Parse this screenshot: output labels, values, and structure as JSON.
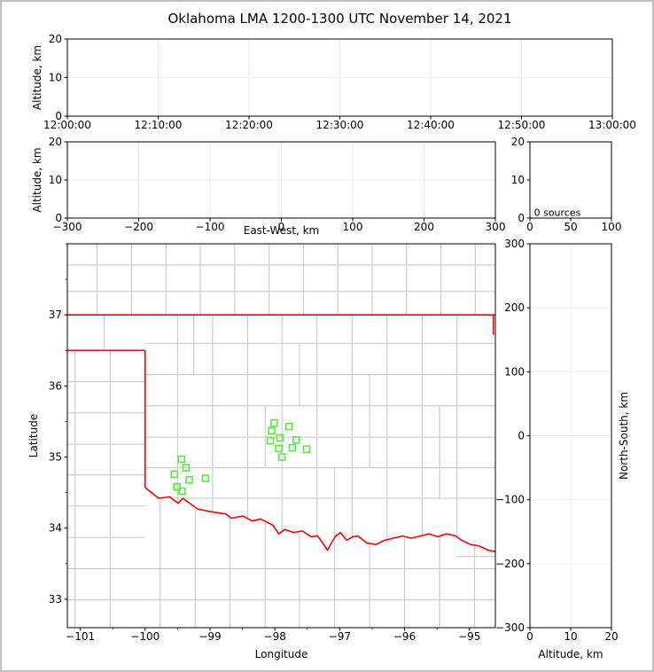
{
  "title": "Oklahoma LMA 1200-1300 UTC November 14, 2021",
  "colors": {
    "frame": "#000000",
    "grid": "#ececec",
    "county_line": "#c9c9c9",
    "state_border": "#ff0000",
    "station_marker": "#55ee33",
    "text": "#000000",
    "figure_border": "#c0c0c0",
    "background": "#ffffff"
  },
  "chart_data": {
    "type": "scatter",
    "figure_title": "Oklahoma LMA 1200-1300 UTC November 14, 2021",
    "source_count_note": "0 sources",
    "panels": [
      {
        "id": "time_height",
        "description": "altitude vs time panel, no data points",
        "x": {
          "min": 0,
          "max": 3600,
          "grid": true,
          "tick_values": [
            0,
            600,
            1200,
            1800,
            2400,
            3000,
            3600
          ],
          "tick_labels": [
            "12:00:00",
            "12:10:00",
            "12:20:00",
            "12:30:00",
            "12:40:00",
            "12:50:00",
            "13:00:00"
          ],
          "label": ""
        },
        "y": {
          "min": 0,
          "max": 20,
          "grid": true,
          "tick_values": [
            0,
            10,
            20
          ],
          "tick_labels": [
            "0",
            "10",
            "20"
          ],
          "label": "Altitude, km"
        },
        "points": []
      },
      {
        "id": "ew_height",
        "description": "altitude vs east-west distance panel, no data points",
        "x": {
          "min": -300,
          "max": 300,
          "grid": true,
          "tick_values": [
            -300,
            -200,
            -100,
            0,
            100,
            200,
            300
          ],
          "tick_labels": [
            "−300",
            "−200",
            "−100",
            "0",
            "100",
            "200",
            "300"
          ],
          "label": "East-West, km"
        },
        "y": {
          "min": 0,
          "max": 20,
          "grid": true,
          "tick_values": [
            0,
            10,
            20
          ],
          "tick_labels": [
            "0",
            "10",
            "20"
          ],
          "label": "Altitude, km"
        },
        "points": []
      },
      {
        "id": "alt_hist",
        "description": "altitude histogram panel, zero sources",
        "x": {
          "min": 0,
          "max": 100,
          "grid": false,
          "tick_values": [
            0,
            50,
            100
          ],
          "tick_labels": [
            "0",
            "50",
            "100"
          ],
          "label": ""
        },
        "y": {
          "min": 0,
          "max": 20,
          "grid": false,
          "tick_values": [
            0,
            10,
            20
          ],
          "tick_labels": [
            "0",
            "10",
            "20"
          ],
          "label": ""
        },
        "annotation": {
          "x": 5,
          "y": 1.5,
          "text": "0 sources"
        },
        "points": []
      },
      {
        "id": "map",
        "description": "plan-view map, latitude vs longitude, LMA station squares, state borders red, county lines gray",
        "x": {
          "min": -101.2,
          "max": -94.6,
          "grid": false,
          "minor_step": 0.5,
          "tick_values": [
            -101,
            -100,
            -99,
            -98,
            -97,
            -96,
            -95
          ],
          "tick_labels": [
            "−101",
            "−100",
            "−99",
            "−98",
            "−97",
            "−96",
            "−95"
          ],
          "label": "Longitude"
        },
        "y": {
          "min": 32.6,
          "max": 38.0,
          "grid": false,
          "minor_step": 0.5,
          "tick_values": [
            33,
            34,
            35,
            36,
            37
          ],
          "tick_labels": [
            "33",
            "34",
            "35",
            "36",
            "37"
          ],
          "label": "Latitude"
        },
        "stations": [
          [
            -98.01,
            35.48
          ],
          [
            -97.78,
            35.43
          ],
          [
            -98.05,
            35.37
          ],
          [
            -97.92,
            35.27
          ],
          [
            -98.07,
            35.23
          ],
          [
            -97.67,
            35.24
          ],
          [
            -97.73,
            35.13
          ],
          [
            -97.94,
            35.12
          ],
          [
            -97.51,
            35.11
          ],
          [
            -97.89,
            35.0
          ],
          [
            -99.44,
            34.97
          ],
          [
            -99.37,
            34.85
          ],
          [
            -99.55,
            34.76
          ],
          [
            -99.32,
            34.68
          ],
          [
            -99.07,
            34.7
          ],
          [
            -99.51,
            34.58
          ],
          [
            -99.43,
            34.52
          ]
        ],
        "state_borders": [
          [
            [
              -101.2,
              37.0
            ],
            [
              -94.6,
              37.0
            ]
          ],
          [
            [
              -101.2,
              36.5
            ],
            [
              -100.0,
              36.5
            ]
          ],
          [
            [
              -100.0,
              36.5
            ],
            [
              -100.0,
              34.57
            ]
          ],
          [
            [
              -94.63,
              37.0
            ],
            [
              -94.63,
              36.72
            ]
          ],
          [
            [
              -100.0,
              34.57
            ],
            [
              -99.79,
              34.42
            ],
            [
              -99.62,
              34.44
            ],
            [
              -99.49,
              34.35
            ],
            [
              -99.42,
              34.42
            ],
            [
              -99.19,
              34.27
            ],
            [
              -98.98,
              34.23
            ],
            [
              -98.76,
              34.2
            ],
            [
              -98.67,
              34.14
            ],
            [
              -98.49,
              34.17
            ],
            [
              -98.35,
              34.1
            ],
            [
              -98.22,
              34.13
            ],
            [
              -98.03,
              34.04
            ],
            [
              -97.94,
              33.92
            ],
            [
              -97.85,
              33.98
            ],
            [
              -97.71,
              33.94
            ],
            [
              -97.58,
              33.96
            ],
            [
              -97.44,
              33.88
            ],
            [
              -97.34,
              33.89
            ],
            [
              -97.26,
              33.79
            ],
            [
              -97.19,
              33.69
            ],
            [
              -97.13,
              33.79
            ],
            [
              -97.07,
              33.88
            ],
            [
              -96.99,
              33.94
            ],
            [
              -96.89,
              33.83
            ],
            [
              -96.8,
              33.88
            ],
            [
              -96.72,
              33.89
            ],
            [
              -96.58,
              33.79
            ],
            [
              -96.44,
              33.77
            ],
            [
              -96.31,
              33.83
            ],
            [
              -96.17,
              33.86
            ],
            [
              -96.03,
              33.89
            ],
            [
              -95.9,
              33.86
            ],
            [
              -95.76,
              33.89
            ],
            [
              -95.62,
              33.92
            ],
            [
              -95.49,
              33.88
            ],
            [
              -95.35,
              33.92
            ],
            [
              -95.21,
              33.89
            ],
            [
              -95.12,
              33.83
            ],
            [
              -94.98,
              33.77
            ],
            [
              -94.85,
              33.75
            ],
            [
              -94.71,
              33.69
            ],
            [
              -94.6,
              33.67
            ]
          ]
        ],
        "county_segments": [
          [
            -100.74,
            37,
            -100.74,
            38
          ],
          [
            -100.21,
            37,
            -100.21,
            38
          ],
          [
            -99.68,
            37,
            -99.68,
            38
          ],
          [
            -99.15,
            37,
            -99.15,
            38
          ],
          [
            -98.62,
            37,
            -98.62,
            38
          ],
          [
            -98.09,
            37,
            -98.09,
            38
          ],
          [
            -97.56,
            37,
            -97.56,
            38
          ],
          [
            -97.03,
            37,
            -97.03,
            38
          ],
          [
            -96.5,
            37,
            -96.5,
            38
          ],
          [
            -95.97,
            37,
            -95.97,
            38
          ],
          [
            -95.44,
            37,
            -95.44,
            38
          ],
          [
            -94.91,
            37,
            -94.91,
            38
          ],
          [
            -101.2,
            37.33,
            -94.6,
            37.33
          ],
          [
            -101.2,
            37.7,
            -94.6,
            37.7
          ],
          [
            -100.63,
            36.5,
            -100.63,
            37
          ],
          [
            -99.5,
            34.35,
            -99.5,
            37
          ],
          [
            -98.96,
            34.23,
            -98.96,
            37
          ],
          [
            -98.42,
            34.12,
            -98.42,
            37
          ],
          [
            -97.89,
            33.92,
            -97.89,
            37
          ],
          [
            -97.35,
            33.89,
            -97.35,
            37
          ],
          [
            -96.81,
            33.85,
            -96.81,
            37
          ],
          [
            -96.27,
            33.8,
            -96.27,
            37
          ],
          [
            -95.73,
            33.87,
            -95.73,
            37
          ],
          [
            -95.19,
            33.89,
            -95.19,
            37
          ],
          [
            -99.25,
            36.16,
            -99.25,
            37
          ],
          [
            -98.15,
            34.85,
            -98.15,
            35.72
          ],
          [
            -97.62,
            35.72,
            -97.62,
            36.6
          ],
          [
            -96.54,
            34.85,
            -96.54,
            36.16
          ],
          [
            -95.46,
            34.42,
            -95.46,
            35.72
          ],
          [
            -97.08,
            33.88,
            -97.08,
            34.85
          ],
          [
            -100,
            36.6,
            -94.6,
            36.6
          ],
          [
            -100,
            36.16,
            -94.6,
            36.16
          ],
          [
            -100,
            35.72,
            -94.6,
            35.72
          ],
          [
            -100,
            35.28,
            -94.6,
            35.28
          ],
          [
            -100,
            34.85,
            -94.6,
            34.85
          ],
          [
            -99.55,
            34.42,
            -94.6,
            34.42
          ],
          [
            -101.2,
            36.06,
            -100,
            36.06
          ],
          [
            -101.2,
            35.62,
            -100,
            35.62
          ],
          [
            -101.2,
            35.18,
            -100,
            35.18
          ],
          [
            -101.2,
            34.75,
            -100,
            34.75
          ],
          [
            -101.2,
            34.31,
            -100,
            34.31
          ],
          [
            -101.2,
            33.87,
            -100,
            33.87
          ],
          [
            -101.2,
            33.43,
            -100,
            33.43
          ],
          [
            -101.2,
            32.99,
            -100,
            32.99
          ],
          [
            -100.54,
            32.6,
            -100.54,
            36.5
          ],
          [
            -101.08,
            32.6,
            -101.08,
            36.5
          ],
          [
            -100,
            33.43,
            -94.6,
            33.43
          ],
          [
            -100,
            32.99,
            -94.6,
            32.99
          ],
          [
            -95.2,
            33.6,
            -94.6,
            33.6
          ],
          [
            -99.77,
            32.6,
            -99.77,
            34.4
          ],
          [
            -99.23,
            32.6,
            -99.23,
            34.26
          ],
          [
            -98.69,
            32.6,
            -98.69,
            34.15
          ],
          [
            -98.15,
            32.6,
            -98.15,
            34.07
          ],
          [
            -97.62,
            32.6,
            -97.62,
            33.95
          ],
          [
            -97.08,
            32.6,
            -97.08,
            33.86
          ],
          [
            -96.54,
            32.6,
            -96.54,
            33.78
          ],
          [
            -96.0,
            32.6,
            -96.0,
            33.86
          ],
          [
            -95.46,
            32.6,
            -95.46,
            33.88
          ],
          [
            -94.92,
            32.6,
            -94.92,
            33.75
          ]
        ]
      },
      {
        "id": "ns_height",
        "description": "north-south distance vs altitude panel, no data points",
        "x": {
          "min": 0,
          "max": 20,
          "grid": true,
          "tick_values": [
            0,
            10,
            20
          ],
          "tick_labels": [
            "0",
            "10",
            "20"
          ],
          "label": "Altitude, km"
        },
        "y": {
          "min": -300,
          "max": 300,
          "grid": true,
          "label_side": "right",
          "tick_values": [
            -300,
            -200,
            -100,
            0,
            100,
            200,
            300
          ],
          "tick_labels": [
            "−300",
            "−200",
            "−100",
            "0",
            "100",
            "200",
            "300"
          ],
          "label": "North-South, km"
        },
        "points": []
      }
    ]
  }
}
